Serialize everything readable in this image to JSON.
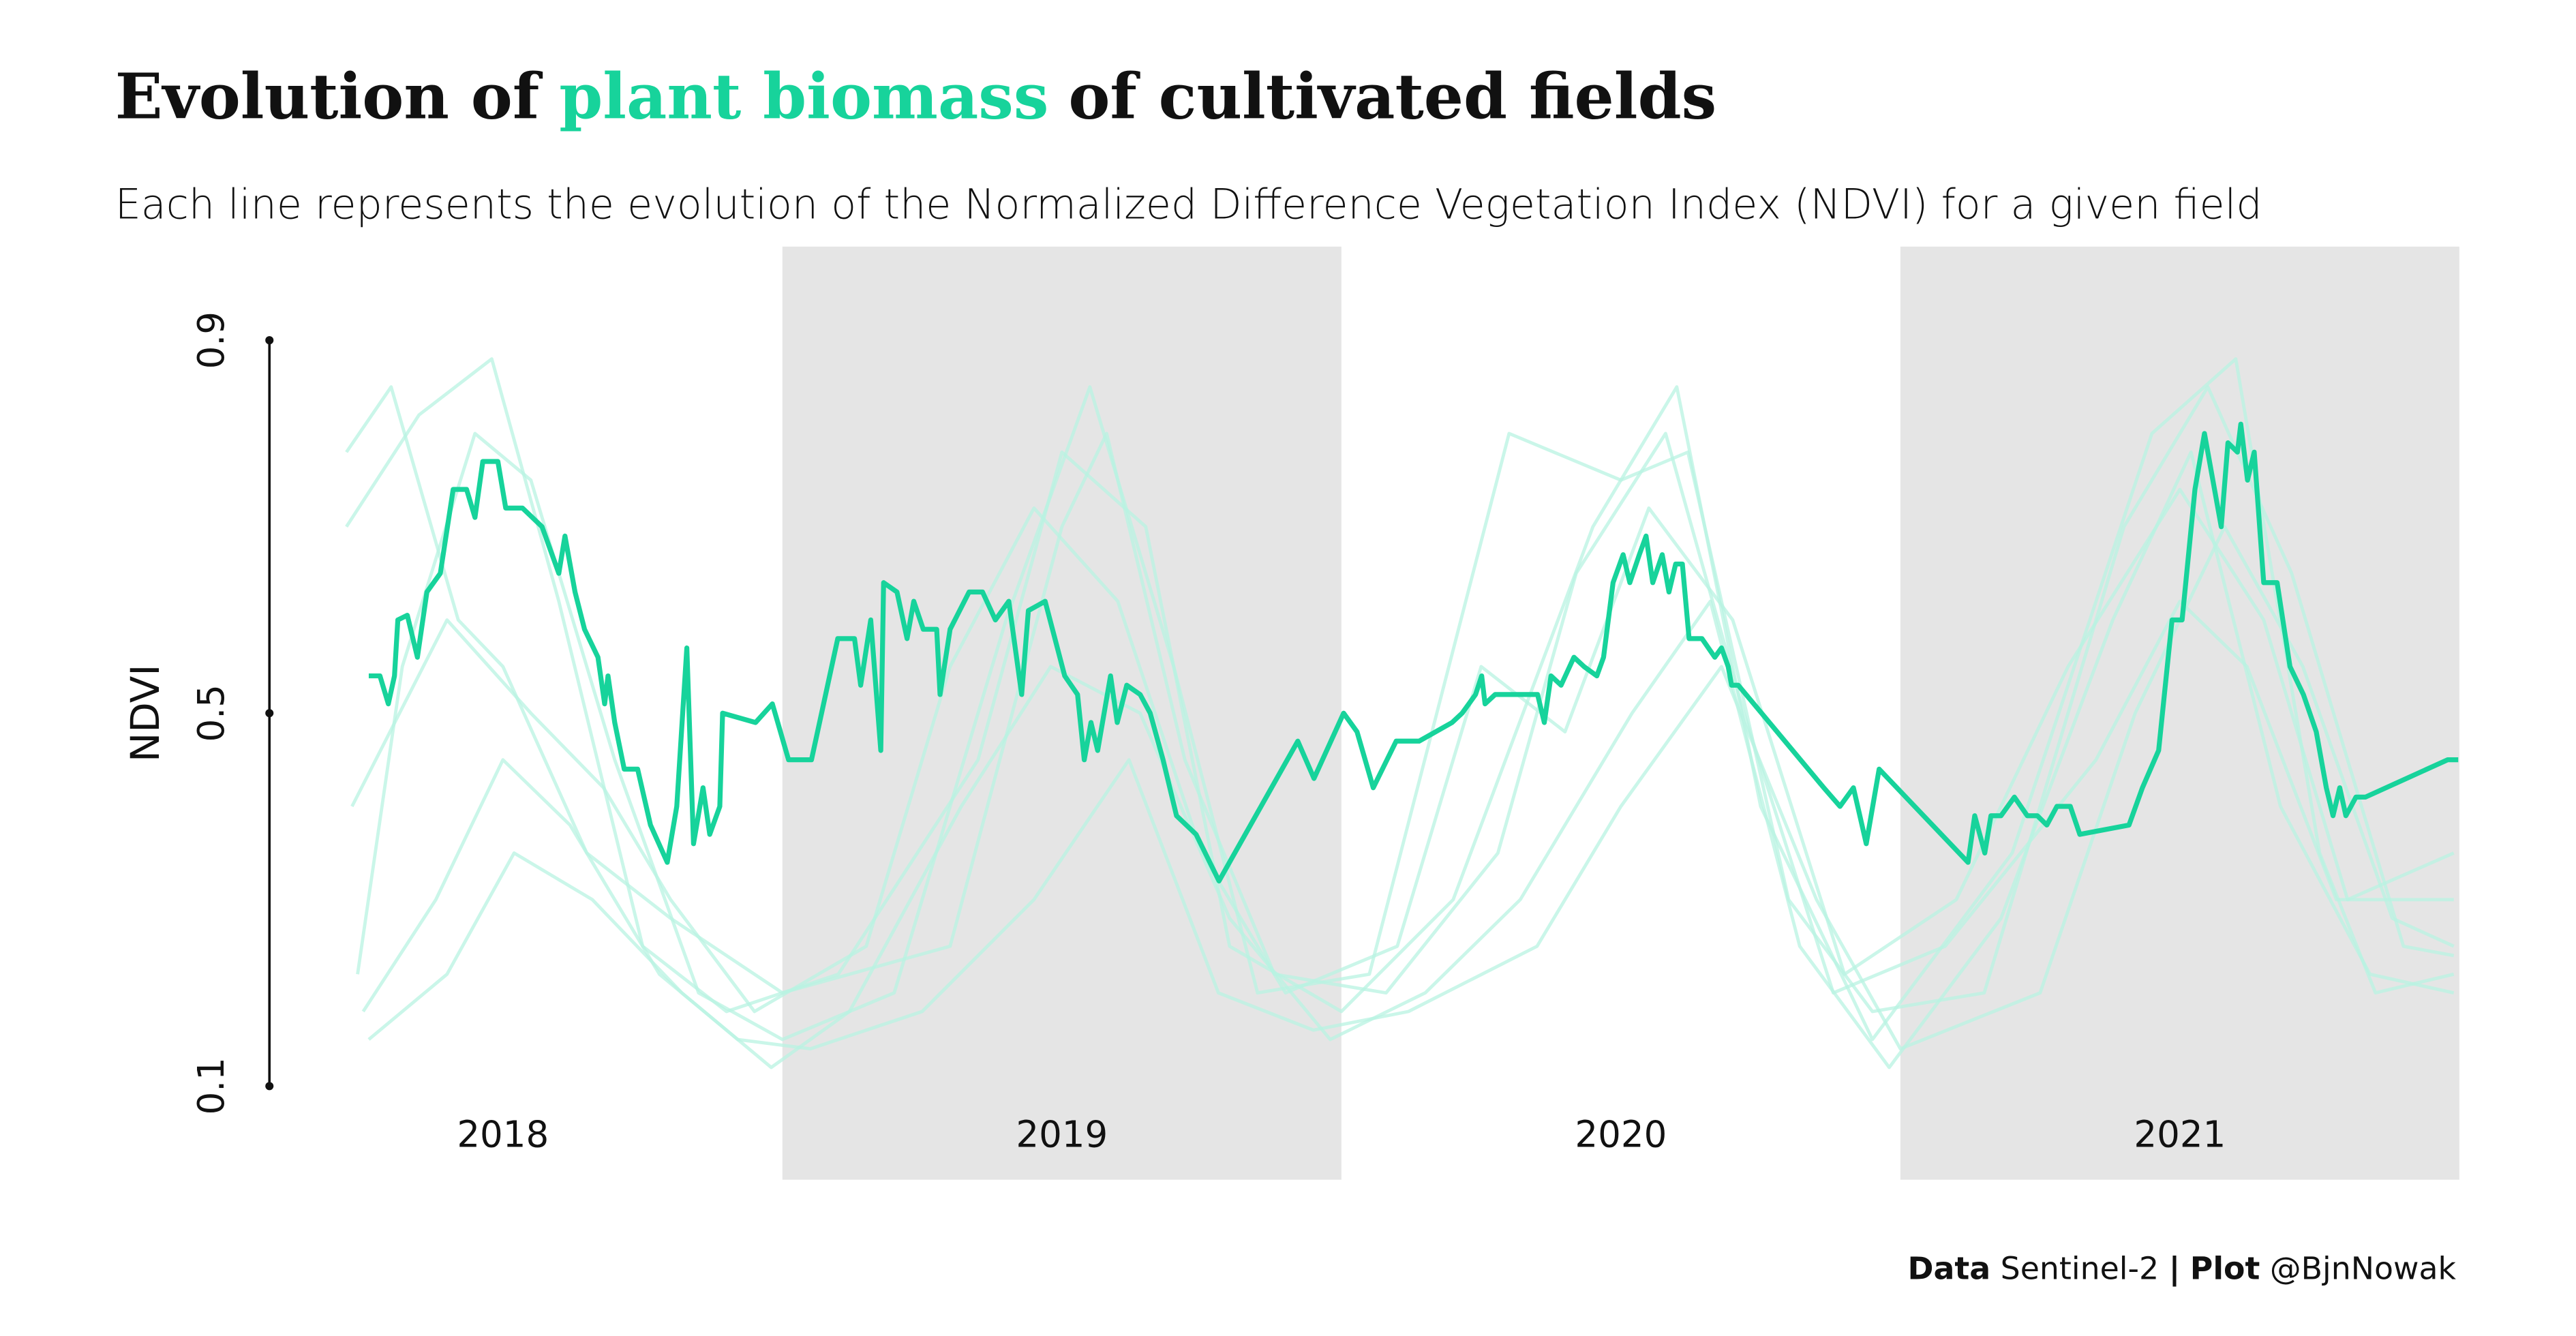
{
  "chart_data": {
    "type": "line",
    "title": {
      "parts": [
        {
          "text": "Evolution of"
        },
        {
          "text": "plant biomass",
          "color": "#17d39b"
        },
        {
          "text": "of cultivated fields"
        }
      ]
    },
    "subtitle": "Each line represents the evolution of the Normalized Difference Vegetation Index (NDVI) for a given field",
    "y_label": "NDVI",
    "caption": {
      "parts": [
        {
          "text": "Data",
          "bold": true
        },
        {
          "text": "Sentinel-2"
        },
        {
          "text": "|",
          "bold": true
        },
        {
          "text": "Plot",
          "bold": true
        },
        {
          "text": "@BjnNowak"
        }
      ]
    },
    "xlim": [
      2018,
      2022
    ],
    "xticks": [
      {
        "value": 2018.5,
        "label": "2018"
      },
      {
        "value": 2019.5,
        "label": "2019"
      },
      {
        "value": 2020.5,
        "label": "2020"
      },
      {
        "value": 2021.5,
        "label": "2021"
      }
    ],
    "shaded_years": [
      2019,
      2021
    ],
    "band_color": "#e5e5e5",
    "ylim": [
      0.1,
      0.9
    ],
    "yticks": [
      0.1,
      0.5,
      0.9
    ],
    "series": [
      {
        "color": "#b8f3e1",
        "x": [
          2018.22,
          2018.35,
          2018.48,
          2018.6,
          2018.75,
          2018.9,
          2019.1,
          2019.35,
          2019.5,
          2019.65,
          2019.8,
          2020.0,
          2020.2,
          2020.45,
          2020.6,
          2020.75,
          2020.95,
          2021.2,
          2021.45,
          2021.6,
          2021.75,
          2021.85,
          2021.99
        ],
        "values": [
          0.7,
          0.82,
          0.88,
          0.62,
          0.25,
          0.18,
          0.22,
          0.45,
          0.78,
          0.7,
          0.25,
          0.18,
          0.3,
          0.7,
          0.85,
          0.4,
          0.15,
          0.35,
          0.8,
          0.88,
          0.35,
          0.2,
          0.22
        ]
      },
      {
        "color": "#b8f3e1",
        "x": [
          2018.24,
          2018.32,
          2018.45,
          2018.55,
          2018.7,
          2018.85,
          2019.0,
          2019.2,
          2019.4,
          2019.55,
          2019.7,
          2019.85,
          2020.05,
          2020.3,
          2020.5,
          2020.62,
          2020.8,
          2020.95,
          2021.15,
          2021.4,
          2021.55,
          2021.7,
          2021.9,
          2021.99
        ],
        "values": [
          0.22,
          0.55,
          0.8,
          0.75,
          0.45,
          0.2,
          0.15,
          0.2,
          0.6,
          0.85,
          0.55,
          0.2,
          0.22,
          0.8,
          0.75,
          0.78,
          0.3,
          0.18,
          0.2,
          0.7,
          0.85,
          0.65,
          0.25,
          0.24
        ]
      },
      {
        "color": "#b8f3e1",
        "x": [
          2018.23,
          2018.4,
          2018.55,
          2018.68,
          2018.8,
          2018.95,
          2019.15,
          2019.3,
          2019.45,
          2019.6,
          2019.75,
          2019.9,
          2020.1,
          2020.25,
          2020.4,
          2020.55,
          2020.7,
          2020.9,
          2021.1,
          2021.3,
          2021.5,
          2021.65,
          2021.8,
          2021.99
        ],
        "values": [
          0.4,
          0.6,
          0.5,
          0.42,
          0.3,
          0.18,
          0.25,
          0.55,
          0.72,
          0.62,
          0.35,
          0.2,
          0.25,
          0.55,
          0.48,
          0.72,
          0.6,
          0.22,
          0.3,
          0.55,
          0.74,
          0.6,
          0.3,
          0.35
        ]
      },
      {
        "color": "#b8f3e1",
        "x": [
          2018.25,
          2018.38,
          2018.5,
          2018.62,
          2018.78,
          2018.92,
          2019.05,
          2019.25,
          2019.45,
          2019.62,
          2019.78,
          2019.95,
          2020.12,
          2020.35,
          2020.5,
          2020.68,
          2020.85,
          2021.0,
          2021.25,
          2021.42,
          2021.58,
          2021.72,
          2021.88,
          2021.99
        ],
        "values": [
          0.18,
          0.3,
          0.45,
          0.38,
          0.22,
          0.15,
          0.14,
          0.18,
          0.3,
          0.45,
          0.2,
          0.16,
          0.18,
          0.25,
          0.4,
          0.55,
          0.3,
          0.14,
          0.2,
          0.5,
          0.7,
          0.55,
          0.28,
          0.25
        ]
      },
      {
        "color": "#b8f3e1",
        "x": [
          2018.22,
          2018.3,
          2018.42,
          2018.5,
          2018.65,
          2018.8,
          2019.0,
          2019.3,
          2019.5,
          2019.58,
          2019.72,
          2019.88,
          2020.08,
          2020.28,
          2020.42,
          2020.58,
          2020.72,
          2020.88,
          2021.08,
          2021.35,
          2021.5,
          2021.62,
          2021.78,
          2021.99
        ],
        "values": [
          0.78,
          0.85,
          0.6,
          0.55,
          0.35,
          0.28,
          0.2,
          0.25,
          0.7,
          0.8,
          0.45,
          0.22,
          0.2,
          0.35,
          0.65,
          0.8,
          0.5,
          0.2,
          0.25,
          0.45,
          0.62,
          0.55,
          0.3,
          0.3
        ]
      },
      {
        "color": "#b8f3e1",
        "x": [
          2018.26,
          2018.4,
          2018.52,
          2018.66,
          2018.82,
          2018.98,
          2019.12,
          2019.32,
          2019.48,
          2019.64,
          2019.8,
          2019.98,
          2020.15,
          2020.32,
          2020.52,
          2020.66,
          2020.82,
          2020.98,
          2021.18,
          2021.38,
          2021.52,
          2021.68,
          2021.84,
          2021.99
        ],
        "values": [
          0.15,
          0.22,
          0.35,
          0.3,
          0.2,
          0.12,
          0.18,
          0.4,
          0.55,
          0.5,
          0.28,
          0.15,
          0.2,
          0.3,
          0.5,
          0.62,
          0.25,
          0.12,
          0.28,
          0.6,
          0.78,
          0.4,
          0.22,
          0.2
        ]
      },
      {
        "color": "#17d39b",
        "highlight": true,
        "x": [
          2018.26,
          2018.28,
          2018.295,
          2018.306,
          2018.312,
          2018.329,
          2018.347,
          2018.364,
          2018.388,
          2018.411,
          2018.435,
          2018.45,
          2018.464,
          2018.491,
          2018.505,
          2018.535,
          2018.57,
          2018.6,
          2018.611,
          2018.629,
          2018.646,
          2018.67,
          2018.682,
          2018.688,
          2018.7,
          2018.717,
          2018.741,
          2018.764,
          2018.794,
          2018.811,
          2018.829,
          2018.841,
          2018.858,
          2018.87,
          2018.888,
          2018.893,
          2018.952,
          2018.982,
          2019.011,
          2019.052,
          2019.099,
          2019.129,
          2019.14,
          2019.158,
          2019.176,
          2019.181,
          2019.205,
          2019.223,
          2019.235,
          2019.252,
          2019.276,
          2019.282,
          2019.3,
          2019.334,
          2019.358,
          2019.381,
          2019.405,
          2019.428,
          2019.44,
          2019.47,
          2019.505,
          2019.528,
          2019.54,
          2019.552,
          2019.564,
          2019.587,
          2019.599,
          2019.616,
          2019.64,
          2019.658,
          2019.681,
          2019.705,
          2019.74,
          2019.781,
          2019.922,
          2019.951,
          2020.004,
          2020.028,
          2020.057,
          2020.098,
          2020.139,
          2020.198,
          2020.216,
          2020.228,
          2020.24,
          2020.251,
          2020.257,
          2020.275,
          2020.298,
          2020.351,
          2020.363,
          2020.375,
          2020.393,
          2020.416,
          2020.434,
          2020.457,
          2020.469,
          2020.486,
          2020.504,
          2020.516,
          2020.533,
          2020.545,
          2020.557,
          2020.574,
          2020.586,
          2020.598,
          2020.61,
          2020.622,
          2020.645,
          2020.668,
          2020.68,
          2020.692,
          2020.698,
          2020.71,
          2020.863,
          2020.892,
          2020.916,
          2020.939,
          2020.962,
          2021.121,
          2021.133,
          2021.151,
          2021.162,
          2021.18,
          2021.204,
          2021.227,
          2021.245,
          2021.262,
          2021.28,
          2021.304,
          2021.321,
          2021.409,
          2021.433,
          2021.462,
          2021.486,
          2021.504,
          2021.527,
          2021.544,
          2021.562,
          2021.574,
          2021.586,
          2021.603,
          2021.609,
          2021.621,
          2021.633,
          2021.65,
          2021.674,
          2021.697,
          2021.721,
          2021.744,
          2021.762,
          2021.774,
          2021.786,
          2021.797,
          2021.815,
          2021.832,
          2021.979,
          2021.998
        ],
        "values": [
          0.54,
          0.54,
          0.51,
          0.54,
          0.6,
          0.605,
          0.56,
          0.63,
          0.65,
          0.74,
          0.74,
          0.71,
          0.77,
          0.77,
          0.72,
          0.72,
          0.7,
          0.65,
          0.69,
          0.63,
          0.59,
          0.56,
          0.51,
          0.54,
          0.49,
          0.44,
          0.44,
          0.38,
          0.34,
          0.4,
          0.57,
          0.36,
          0.42,
          0.37,
          0.4,
          0.5,
          0.49,
          0.51,
          0.45,
          0.45,
          0.58,
          0.58,
          0.53,
          0.6,
          0.46,
          0.64,
          0.63,
          0.58,
          0.62,
          0.59,
          0.59,
          0.52,
          0.59,
          0.63,
          0.63,
          0.6,
          0.62,
          0.52,
          0.61,
          0.62,
          0.54,
          0.52,
          0.45,
          0.49,
          0.46,
          0.54,
          0.49,
          0.53,
          0.52,
          0.5,
          0.45,
          0.39,
          0.37,
          0.32,
          0.47,
          0.43,
          0.5,
          0.48,
          0.42,
          0.47,
          0.47,
          0.49,
          0.5,
          0.51,
          0.52,
          0.54,
          0.51,
          0.52,
          0.52,
          0.52,
          0.49,
          0.54,
          0.53,
          0.56,
          0.55,
          0.54,
          0.56,
          0.64,
          0.67,
          0.64,
          0.67,
          0.69,
          0.64,
          0.67,
          0.63,
          0.66,
          0.66,
          0.58,
          0.58,
          0.56,
          0.57,
          0.55,
          0.53,
          0.53,
          0.42,
          0.4,
          0.42,
          0.36,
          0.44,
          0.34,
          0.39,
          0.35,
          0.39,
          0.39,
          0.41,
          0.39,
          0.39,
          0.38,
          0.4,
          0.4,
          0.37,
          0.38,
          0.42,
          0.46,
          0.6,
          0.6,
          0.74,
          0.8,
          0.74,
          0.7,
          0.79,
          0.78,
          0.81,
          0.75,
          0.78,
          0.64,
          0.64,
          0.55,
          0.52,
          0.48,
          0.42,
          0.39,
          0.42,
          0.39,
          0.41,
          0.41,
          0.45,
          0.45
        ]
      }
    ]
  }
}
